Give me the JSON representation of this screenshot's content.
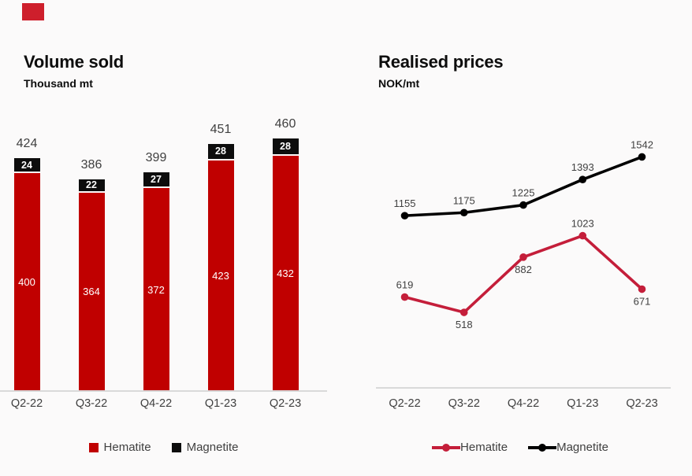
{
  "page": {
    "background": "#FBFAFA",
    "logo_color": "#CE1F2C"
  },
  "axis": {
    "line_color": "#D9D9D9",
    "label_color": "#404040"
  },
  "chart_data": [
    {
      "type": "bar",
      "stacked": true,
      "title": "Volume sold",
      "subtitle": "Thousand mt",
      "categories": [
        "Q2-22",
        "Q3-22",
        "Q4-22",
        "Q1-23",
        "Q2-23"
      ],
      "series": [
        {
          "name": "Hematite",
          "color": "#C00000",
          "values": [
            400,
            364,
            372,
            423,
            432
          ]
        },
        {
          "name": "Magnetite",
          "color": "#0D0D0D",
          "values": [
            24,
            22,
            27,
            28,
            28
          ]
        }
      ],
      "totals": [
        424,
        386,
        399,
        451,
        460
      ],
      "ylim": [
        0,
        530
      ],
      "grid": false,
      "legend_position": "bottom",
      "segment_label_color": "#FFFFFF",
      "total_label_color": "#404040"
    },
    {
      "type": "line",
      "title": "Realised prices",
      "subtitle": "NOK/mt",
      "categories": [
        "Q2-22",
        "Q3-22",
        "Q4-22",
        "Q1-23",
        "Q2-23"
      ],
      "series": [
        {
          "name": "Hematite",
          "color": "#C41E3A",
          "values": [
            619,
            518,
            882,
            1023,
            671
          ],
          "label_side": [
            "above",
            "below",
            "below",
            "above",
            "below"
          ]
        },
        {
          "name": "Magnetite",
          "color": "#000000",
          "values": [
            1155,
            1175,
            1225,
            1393,
            1542
          ],
          "label_side": [
            "above",
            "above",
            "above",
            "above",
            "above"
          ]
        }
      ],
      "ylim": [
        0,
        1850
      ],
      "grid": false,
      "legend_position": "bottom",
      "data_label_color": "#404040"
    }
  ]
}
